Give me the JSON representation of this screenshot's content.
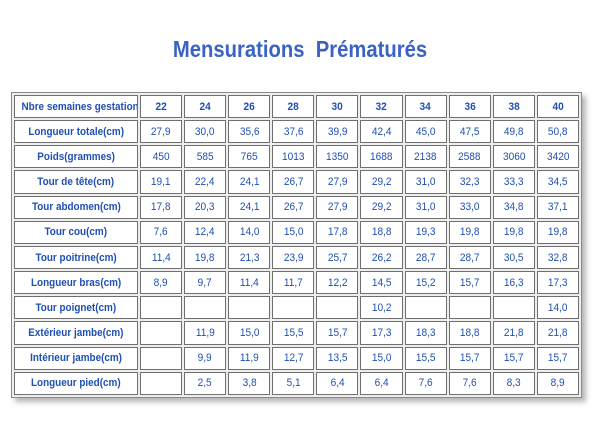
{
  "title": "Mensurations  Prématurés",
  "chart_data": {
    "type": "table",
    "columns": [
      "Nbre semaines gestation",
      "22",
      "24",
      "26",
      "28",
      "30",
      "32",
      "34",
      "36",
      "38",
      "40"
    ],
    "rows": [
      {
        "label": "Longueur totale(cm)",
        "values": [
          "27,9",
          "30,0",
          "35,6",
          "37,6",
          "39,9",
          "42,4",
          "45,0",
          "47,5",
          "49,8",
          "50,8"
        ]
      },
      {
        "label": "Poids(grammes)",
        "values": [
          "450",
          "585",
          "765",
          "1013",
          "1350",
          "1688",
          "2138",
          "2588",
          "3060",
          "3420"
        ]
      },
      {
        "label": "Tour de tête(cm)",
        "values": [
          "19,1",
          "22,4",
          "24,1",
          "26,7",
          "27,9",
          "29,2",
          "31,0",
          "32,3",
          "33,3",
          "34,5"
        ]
      },
      {
        "label": "Tour abdomen(cm)",
        "values": [
          "17,8",
          "20,3",
          "24,1",
          "26,7",
          "27,9",
          "29,2",
          "31,0",
          "33,0",
          "34,8",
          "37,1"
        ]
      },
      {
        "label": "Tour cou(cm)",
        "values": [
          "7,6",
          "12,4",
          "14,0",
          "15,0",
          "17,8",
          "18,8",
          "19,3",
          "19,8",
          "19,8",
          "19,8"
        ]
      },
      {
        "label": "Tour poitrine(cm)",
        "values": [
          "11,4",
          "19,8",
          "21,3",
          "23,9",
          "25,7",
          "26,2",
          "28,7",
          "28,7",
          "30,5",
          "32,8"
        ]
      },
      {
        "label": "Longueur bras(cm)",
        "values": [
          "8,9",
          "9,7",
          "11,4",
          "11,7",
          "12,2",
          "14,5",
          "15,2",
          "15,7",
          "16,3",
          "17,3"
        ]
      },
      {
        "label": "Tour poignet(cm)",
        "values": [
          "",
          "",
          "",
          "",
          "",
          "10,2",
          "",
          "",
          "",
          "14,0"
        ]
      },
      {
        "label": "Extérieur jambe(cm)",
        "values": [
          "",
          "11,9",
          "15,0",
          "15,5",
          "15,7",
          "17,3",
          "18,3",
          "18,8",
          "21,8",
          "21,8"
        ]
      },
      {
        "label": "Intérieur jambe(cm)",
        "values": [
          "",
          "9,9",
          "11,9",
          "12,7",
          "13,5",
          "15,0",
          "15,5",
          "15,7",
          "15,7",
          "15,7"
        ]
      },
      {
        "label": "Longueur pied(cm)",
        "values": [
          "",
          "2,5",
          "3,8",
          "5,1",
          "6,4",
          "6,4",
          "7,6",
          "7,6",
          "8,3",
          "8,9"
        ]
      }
    ]
  }
}
